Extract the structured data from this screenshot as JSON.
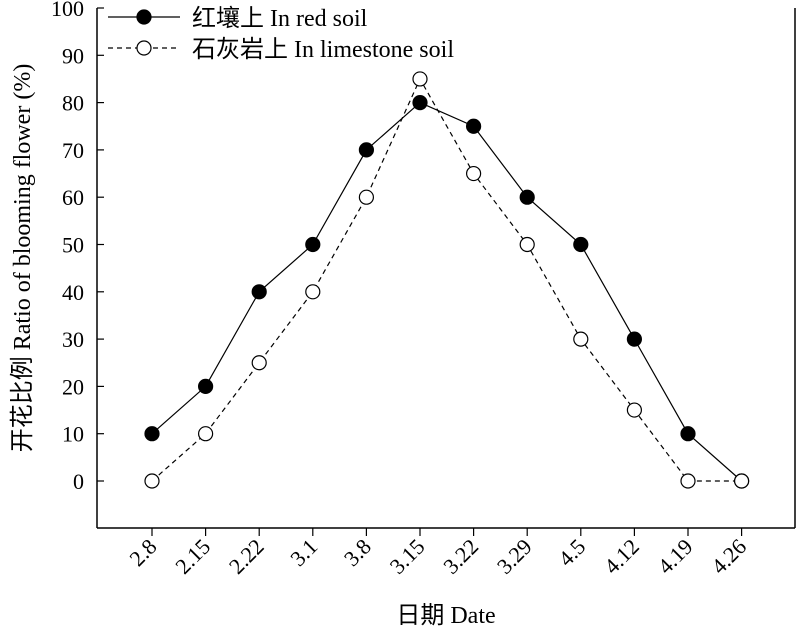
{
  "chart_data": {
    "type": "line",
    "xlabel": "日期 Date",
    "ylabel": "开花比例 Ratio of blooming flower (%)",
    "categories": [
      "2.8",
      "2.15",
      "2.22",
      "3.1",
      "3.8",
      "3.15",
      "3.22",
      "3.29",
      "4.5",
      "4.12",
      "4.19",
      "4.26"
    ],
    "ylim": [
      0,
      100
    ],
    "yticks": [
      0,
      10,
      20,
      30,
      40,
      50,
      60,
      70,
      80,
      90,
      100
    ],
    "grid": false,
    "legend_position": "top-left",
    "series": [
      {
        "name": "红壤上 In red soil",
        "marker": "filled-circle",
        "line": "solid",
        "color": "#000000",
        "values": [
          10,
          20,
          40,
          50,
          70,
          80,
          75,
          60,
          50,
          30,
          10,
          0
        ]
      },
      {
        "name": "石灰岩上 In limestone soil",
        "marker": "open-circle",
        "line": "dashed",
        "color": "#000000",
        "values": [
          0,
          10,
          25,
          40,
          60,
          85,
          65,
          50,
          30,
          15,
          0,
          0
        ]
      }
    ]
  }
}
